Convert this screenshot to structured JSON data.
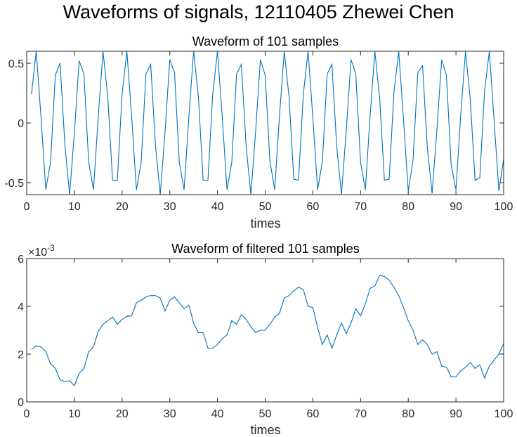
{
  "figure": {
    "suptitle": "Waveforms of signals, 12110405 Zhewei Chen",
    "line_color": "#0072BD"
  },
  "chart_data": [
    {
      "type": "line",
      "title": "Waveform of 101 samples",
      "xlabel": "times",
      "ylabel": "",
      "xlim": [
        0,
        100
      ],
      "ylim": [
        -0.6,
        0.6
      ],
      "xticks": [
        0,
        10,
        20,
        30,
        40,
        50,
        60,
        70,
        80,
        90,
        100
      ],
      "xtick_labels": [
        "0",
        "10",
        "20",
        "30",
        "40",
        "50",
        "60",
        "70",
        "80",
        "90",
        "100"
      ],
      "yticks": [
        -0.5,
        0,
        0.5
      ],
      "ytick_labels": [
        "-0.5",
        "0",
        "0.5"
      ],
      "grid": false,
      "x": [
        1,
        2,
        3,
        4,
        5,
        6,
        7,
        8,
        9,
        10,
        11,
        12,
        13,
        14,
        15,
        16,
        17,
        18,
        19,
        20,
        21,
        22,
        23,
        24,
        25,
        26,
        27,
        28,
        29,
        30,
        31,
        32,
        33,
        34,
        35,
        36,
        37,
        38,
        39,
        40,
        41,
        42,
        43,
        44,
        45,
        46,
        47,
        48,
        49,
        50,
        51,
        52,
        53,
        54,
        55,
        56,
        57,
        58,
        59,
        60,
        61,
        62,
        63,
        64,
        65,
        66,
        67,
        68,
        69,
        70,
        71,
        72,
        73,
        74,
        75,
        76,
        77,
        78,
        79,
        80,
        81,
        82,
        83,
        84,
        85,
        86,
        87,
        88,
        89,
        90,
        91,
        92,
        93,
        94,
        95,
        96,
        97,
        98,
        99,
        100,
        101
      ],
      "y": [
        0.24,
        0.6,
        0.05,
        -0.56,
        -0.33,
        0.4,
        0.5,
        -0.18,
        -0.6,
        -0.08,
        0.52,
        0.41,
        -0.33,
        -0.56,
        0.05,
        0.6,
        0.22,
        -0.48,
        -0.48,
        0.24,
        0.6,
        0.06,
        -0.56,
        -0.33,
        0.41,
        0.49,
        -0.19,
        -0.6,
        -0.08,
        0.53,
        0.42,
        -0.33,
        -0.56,
        0.05,
        0.6,
        0.22,
        -0.48,
        -0.48,
        0.24,
        0.6,
        0.05,
        -0.56,
        -0.33,
        0.41,
        0.49,
        -0.19,
        -0.6,
        -0.07,
        0.53,
        0.4,
        -0.32,
        -0.56,
        0.06,
        0.6,
        0.22,
        -0.47,
        -0.48,
        0.24,
        0.6,
        0.04,
        -0.56,
        -0.32,
        0.41,
        0.49,
        -0.2,
        -0.6,
        -0.06,
        0.53,
        0.41,
        -0.33,
        -0.56,
        0.06,
        0.6,
        0.21,
        -0.48,
        -0.47,
        0.26,
        0.6,
        0.03,
        -0.57,
        -0.31,
        0.42,
        0.48,
        -0.21,
        -0.59,
        -0.06,
        0.53,
        0.4,
        -0.35,
        -0.56,
        0.07,
        0.6,
        0.2,
        -0.48,
        -0.46,
        0.27,
        0.6,
        0.02,
        -0.57,
        -0.3,
        0.42
      ]
    },
    {
      "type": "line",
      "title": "Waveform of filtered 101 samples",
      "xlabel": "times",
      "ylabel": "",
      "exponent_label": "×10",
      "exponent_power": "-3",
      "xlim": [
        0,
        100
      ],
      "ylim": [
        0,
        6
      ],
      "xticks": [
        0,
        10,
        20,
        30,
        40,
        50,
        60,
        70,
        80,
        90,
        100
      ],
      "xtick_labels": [
        "0",
        "10",
        "20",
        "30",
        "40",
        "50",
        "60",
        "70",
        "80",
        "90",
        "100"
      ],
      "yticks": [
        0,
        2,
        4,
        6
      ],
      "ytick_labels": [
        "0",
        "2",
        "4",
        "6"
      ],
      "grid": false,
      "x": [
        1,
        2,
        3,
        4,
        5,
        6,
        7,
        8,
        9,
        10,
        11,
        12,
        13,
        14,
        15,
        16,
        17,
        18,
        19,
        20,
        21,
        22,
        23,
        24,
        25,
        26,
        27,
        28,
        29,
        30,
        31,
        32,
        33,
        34,
        35,
        36,
        37,
        38,
        39,
        40,
        41,
        42,
        43,
        44,
        45,
        46,
        47,
        48,
        49,
        50,
        51,
        52,
        53,
        54,
        55,
        56,
        57,
        58,
        59,
        60,
        61,
        62,
        63,
        64,
        65,
        66,
        67,
        68,
        69,
        70,
        71,
        72,
        73,
        74,
        75,
        76,
        77,
        78,
        79,
        80,
        81,
        82,
        83,
        84,
        85,
        86,
        87,
        88,
        89,
        90,
        91,
        92,
        93,
        94,
        95,
        96,
        97,
        98,
        99,
        100,
        101
      ],
      "y": [
        2.2,
        2.35,
        2.3,
        2.1,
        1.6,
        1.4,
        0.92,
        0.85,
        0.88,
        0.68,
        1.2,
        1.4,
        2.1,
        2.3,
        2.95,
        3.25,
        3.4,
        3.55,
        3.25,
        3.45,
        3.58,
        3.6,
        4.15,
        4.25,
        4.4,
        4.45,
        4.45,
        4.35,
        3.8,
        4.25,
        4.4,
        4.15,
        3.9,
        4.05,
        3.3,
        2.9,
        2.9,
        2.25,
        2.25,
        2.4,
        2.65,
        2.8,
        3.4,
        3.25,
        3.65,
        3.45,
        3.15,
        2.9,
        3.0,
        3.0,
        3.25,
        3.55,
        3.7,
        4.35,
        4.45,
        4.65,
        4.8,
        4.7,
        4.0,
        3.95,
        3.1,
        2.4,
        2.8,
        2.25,
        2.8,
        3.3,
        2.85,
        3.3,
        3.9,
        3.6,
        4.1,
        4.75,
        4.85,
        5.3,
        5.25,
        5.1,
        4.8,
        4.45,
        3.95,
        3.4,
        3.0,
        2.4,
        2.6,
        2.4,
        2.0,
        2.1,
        1.5,
        1.45,
        1.05,
        1.05,
        1.3,
        1.45,
        1.65,
        1.4,
        1.55,
        1.0,
        1.5,
        1.75,
        2.0,
        2.45,
        2.45
      ]
    }
  ]
}
